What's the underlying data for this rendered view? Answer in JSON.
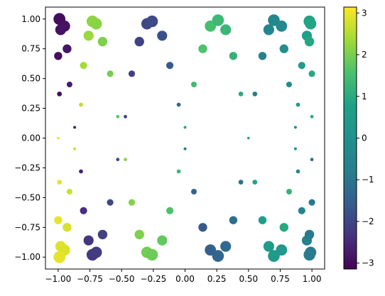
{
  "chart_data": {
    "type": "scatter",
    "title": "",
    "xlabel": "",
    "ylabel": "",
    "xlim": [
      -1.1,
      1.1
    ],
    "ylim": [
      -1.1,
      1.1
    ],
    "x_ticks": [
      "−1.00",
      "−0.75",
      "−0.50",
      "−0.25",
      "0.00",
      "0.25",
      "0.50",
      "0.75",
      "1.00"
    ],
    "x_tick_values": [
      -1.0,
      -0.75,
      -0.5,
      -0.25,
      0.0,
      0.25,
      0.5,
      0.75,
      1.0
    ],
    "y_ticks": [
      "−1.00",
      "−0.75",
      "−0.50",
      "−0.25",
      "0.00",
      "0.25",
      "0.50",
      "0.75",
      "1.00"
    ],
    "y_tick_values": [
      -1.0,
      -0.75,
      -0.5,
      -0.25,
      0.0,
      0.25,
      0.5,
      0.75,
      1.0
    ],
    "grid": false,
    "colormap": "viridis",
    "colorbar": {
      "range": [
        -3.14159,
        3.14159
      ],
      "ticks": [
        "−3",
        "−2",
        "−1",
        "0",
        "1",
        "2",
        "3"
      ],
      "tick_values": [
        -3,
        -2,
        -1,
        0,
        1,
        2,
        3
      ]
    },
    "note_points": "x = cos(a), y = sin(b) sampled on a grid; marker color = value, marker size grows with |y|",
    "points": [
      {
        "x": -0.99,
        "y": 1.0,
        "c": -2.95
      },
      {
        "x": -0.98,
        "y": 0.91,
        "c": -2.9
      },
      {
        "x": -0.95,
        "y": 0.94,
        "c": -2.85
      },
      {
        "x": -0.93,
        "y": 0.75,
        "c": -2.8
      },
      {
        "x": -1.0,
        "y": 0.69,
        "c": -2.95
      },
      {
        "x": -0.91,
        "y": 0.45,
        "c": -2.7
      },
      {
        "x": -0.99,
        "y": 0.37,
        "c": -2.95
      },
      {
        "x": -0.87,
        "y": 0.09,
        "c": -2.65
      },
      {
        "x": -1.0,
        "y": 0.0,
        "c": 2.95
      },
      {
        "x": -0.82,
        "y": 0.28,
        "c": 2.6
      },
      {
        "x": -0.8,
        "y": 0.61,
        "c": 2.4
      },
      {
        "x": -0.76,
        "y": 0.86,
        "c": 2.3
      },
      {
        "x": -0.73,
        "y": 0.98,
        "c": 2.2
      },
      {
        "x": -0.7,
        "y": 0.96,
        "c": 2.15
      },
      {
        "x": -0.65,
        "y": 0.81,
        "c": 2.05
      },
      {
        "x": -0.59,
        "y": 0.54,
        "c": 1.95
      },
      {
        "x": -0.53,
        "y": 0.18,
        "c": 1.8
      },
      {
        "x": -0.47,
        "y": 0.18,
        "c": -2.2
      },
      {
        "x": -0.42,
        "y": 0.54,
        "c": -2.1
      },
      {
        "x": -0.36,
        "y": 0.81,
        "c": -2.05
      },
      {
        "x": -0.3,
        "y": 0.96,
        "c": -1.95
      },
      {
        "x": -0.26,
        "y": 0.98,
        "c": -1.9
      },
      {
        "x": -0.18,
        "y": 0.86,
        "c": -1.8
      },
      {
        "x": -0.12,
        "y": 0.61,
        "c": -1.6
      },
      {
        "x": -0.05,
        "y": 0.28,
        "c": -1.3
      },
      {
        "x": 0.0,
        "y": 0.09,
        "c": 0.95
      },
      {
        "x": 0.07,
        "y": 0.45,
        "c": 1.4
      },
      {
        "x": 0.14,
        "y": 0.75,
        "c": 1.6
      },
      {
        "x": 0.2,
        "y": 0.94,
        "c": 1.5
      },
      {
        "x": 0.26,
        "y": 0.99,
        "c": 1.35
      },
      {
        "x": 0.32,
        "y": 0.91,
        "c": 1.3
      },
      {
        "x": 0.38,
        "y": 0.69,
        "c": 1.2
      },
      {
        "x": 0.44,
        "y": 0.37,
        "c": 1.05
      },
      {
        "x": 0.5,
        "y": 0.0,
        "c": 0.45
      },
      {
        "x": 0.55,
        "y": 0.37,
        "c": -0.8
      },
      {
        "x": 0.61,
        "y": 0.69,
        "c": -0.7
      },
      {
        "x": 0.66,
        "y": 0.91,
        "c": -0.55
      },
      {
        "x": 0.7,
        "y": 0.99,
        "c": -0.45
      },
      {
        "x": 0.76,
        "y": 0.94,
        "c": -0.35
      },
      {
        "x": 0.78,
        "y": 0.75,
        "c": -0.1
      },
      {
        "x": 0.82,
        "y": 0.45,
        "c": -0.25
      },
      {
        "x": 0.87,
        "y": 0.09,
        "c": -0.1
      },
      {
        "x": 0.89,
        "y": 0.28,
        "c": 0.4
      },
      {
        "x": 0.92,
        "y": 0.61,
        "c": 0.6
      },
      {
        "x": 0.96,
        "y": 0.86,
        "c": 0.75
      },
      {
        "x": 0.98,
        "y": 0.98,
        "c": 0.8
      },
      {
        "x": 0.99,
        "y": 0.96,
        "c": 0.85
      },
      {
        "x": 0.98,
        "y": 0.81,
        "c": 0.9
      },
      {
        "x": 1.0,
        "y": 0.54,
        "c": 0.95
      },
      {
        "x": 1.0,
        "y": 0.18,
        "c": 1.0
      },
      {
        "x": -0.99,
        "y": -0.37,
        "c": 2.95
      },
      {
        "x": -0.91,
        "y": -0.45,
        "c": 2.7
      },
      {
        "x": -0.87,
        "y": -0.09,
        "c": 2.65
      },
      {
        "x": -0.82,
        "y": -0.28,
        "c": -2.6
      },
      {
        "x": -1.0,
        "y": -0.69,
        "c": 2.95
      },
      {
        "x": -0.93,
        "y": -0.75,
        "c": 2.8
      },
      {
        "x": -0.98,
        "y": -0.91,
        "c": 2.9
      },
      {
        "x": -0.95,
        "y": -0.94,
        "c": 2.85
      },
      {
        "x": -0.99,
        "y": -1.0,
        "c": 2.95
      },
      {
        "x": -0.8,
        "y": -0.61,
        "c": -2.4
      },
      {
        "x": -0.76,
        "y": -0.86,
        "c": -2.3
      },
      {
        "x": -0.73,
        "y": -0.98,
        "c": -2.2
      },
      {
        "x": -0.7,
        "y": -0.96,
        "c": -2.15
      },
      {
        "x": -0.65,
        "y": -0.81,
        "c": -2.05
      },
      {
        "x": -0.59,
        "y": -0.54,
        "c": -1.95
      },
      {
        "x": -0.53,
        "y": -0.18,
        "c": -1.8
      },
      {
        "x": -0.47,
        "y": -0.18,
        "c": 2.2
      },
      {
        "x": -0.42,
        "y": -0.54,
        "c": 2.1
      },
      {
        "x": -0.36,
        "y": -0.81,
        "c": 2.05
      },
      {
        "x": -0.3,
        "y": -0.96,
        "c": 1.95
      },
      {
        "x": -0.26,
        "y": -0.98,
        "c": 1.9
      },
      {
        "x": -0.18,
        "y": -0.86,
        "c": 1.8
      },
      {
        "x": -0.12,
        "y": -0.61,
        "c": 1.6
      },
      {
        "x": -0.05,
        "y": -0.28,
        "c": 1.3
      },
      {
        "x": 0.0,
        "y": -0.09,
        "c": -0.95
      },
      {
        "x": 0.07,
        "y": -0.45,
        "c": -1.4
      },
      {
        "x": 0.14,
        "y": -0.75,
        "c": -1.6
      },
      {
        "x": 0.2,
        "y": -0.94,
        "c": -1.5
      },
      {
        "x": 0.26,
        "y": -0.99,
        "c": -1.35
      },
      {
        "x": 0.32,
        "y": -0.91,
        "c": -1.3
      },
      {
        "x": 0.38,
        "y": -0.69,
        "c": -1.2
      },
      {
        "x": 0.44,
        "y": -0.37,
        "c": -1.05
      },
      {
        "x": 0.55,
        "y": -0.37,
        "c": 0.8
      },
      {
        "x": 0.61,
        "y": -0.69,
        "c": 0.7
      },
      {
        "x": 0.66,
        "y": -0.91,
        "c": 0.55
      },
      {
        "x": 0.7,
        "y": -0.99,
        "c": 0.45
      },
      {
        "x": 0.76,
        "y": -0.94,
        "c": 0.35
      },
      {
        "x": 0.78,
        "y": -0.75,
        "c": 0.95
      },
      {
        "x": 0.82,
        "y": -0.45,
        "c": 1.2
      },
      {
        "x": 0.87,
        "y": -0.09,
        "c": 0.1
      },
      {
        "x": 0.89,
        "y": -0.28,
        "c": -0.4
      },
      {
        "x": 0.92,
        "y": -0.61,
        "c": -0.6
      },
      {
        "x": 0.96,
        "y": -0.86,
        "c": -0.75
      },
      {
        "x": 0.98,
        "y": -0.98,
        "c": -0.8
      },
      {
        "x": 0.99,
        "y": -0.96,
        "c": -0.85
      },
      {
        "x": 0.98,
        "y": -0.81,
        "c": -0.9
      },
      {
        "x": 1.0,
        "y": -0.54,
        "c": -0.95
      },
      {
        "x": 1.0,
        "y": -0.18,
        "c": -1.0
      }
    ]
  }
}
